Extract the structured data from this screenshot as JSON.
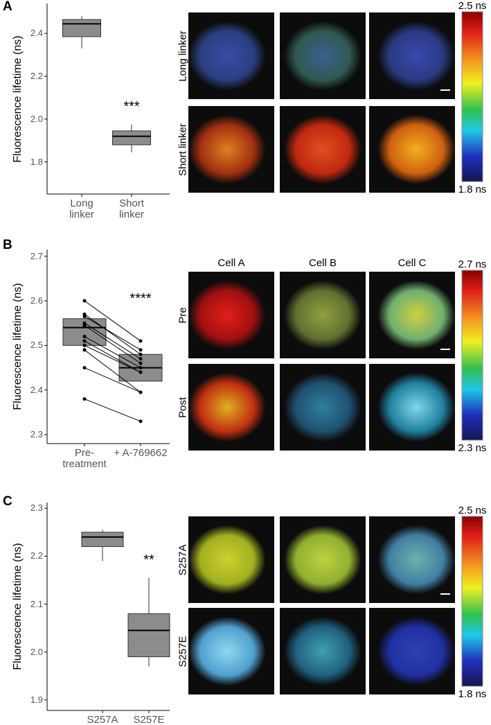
{
  "chart_data": [
    {
      "type": "box",
      "panel_label": "A",
      "y_label": "Fluorescence lifetime (ns)",
      "categories": [
        "Long linker",
        "Short linker"
      ],
      "boxes": [
        {
          "min": 2.33,
          "q1": 2.385,
          "median": 2.445,
          "q3": 2.465,
          "max": 2.48
        },
        {
          "min": 1.845,
          "q1": 1.88,
          "median": 1.92,
          "q3": 1.945,
          "max": 1.975
        }
      ],
      "annotation": "***",
      "ylim": [
        1.65,
        2.54
      ],
      "yticks": [
        1.8,
        {
          "value": 2,
          "label": "2.0"
        },
        2.2,
        2.4
      ],
      "images": {
        "row_labels": [
          "Long linker",
          "Short linker"
        ],
        "colorbar_labels": [
          "2.5 ns",
          "1.8 ns"
        ]
      }
    },
    {
      "type": "box",
      "panel_label": "B",
      "y_label": "Fluorescence lifetime (ns)",
      "categories": [
        "Pre-treatment",
        "+ A-769662"
      ],
      "boxes": [
        {
          "q1": 2.5,
          "median": 2.54,
          "q3": 2.56
        },
        {
          "q1": 2.42,
          "median": 2.45,
          "q3": 2.48
        }
      ],
      "points": [
        [
          2.6,
          2.51
        ],
        [
          2.57,
          2.48
        ],
        [
          2.565,
          2.49
        ],
        [
          2.55,
          2.47
        ],
        [
          2.545,
          2.46
        ],
        [
          2.52,
          2.45
        ],
        [
          2.51,
          2.44
        ],
        [
          2.5,
          2.44
        ],
        [
          2.49,
          2.395
        ],
        [
          2.45,
          2.395
        ],
        [
          2.38,
          2.33
        ]
      ],
      "annotation": "****",
      "ylim": [
        2.28,
        2.715
      ],
      "yticks": [
        2.3,
        2.4,
        2.5,
        2.6,
        2.7
      ],
      "images": {
        "row_labels": [
          "Pre",
          "Post"
        ],
        "col_labels": [
          "Cell A",
          "Cell B",
          "Cell C"
        ],
        "colorbar_labels": [
          "2.7 ns",
          "2.3 ns"
        ]
      }
    },
    {
      "type": "box",
      "panel_label": "C",
      "y_label": "Fluorescence lifetime (ns)",
      "categories": [
        "S257A",
        "S257E"
      ],
      "boxes": [
        {
          "min": 2.19,
          "q1": 2.22,
          "median": 2.24,
          "q3": 2.25,
          "max": 2.255
        },
        {
          "min": 1.97,
          "q1": 1.99,
          "median": 2.045,
          "q3": 2.08,
          "max": 2.155
        }
      ],
      "annotation": "**",
      "ylim": [
        1.878,
        2.312
      ],
      "yticks": [
        1.9,
        {
          "value": 2,
          "label": "2.0"
        },
        2.1,
        2.2,
        2.3
      ],
      "images": {
        "row_labels": [
          "S257A",
          "S257E"
        ],
        "colorbar_labels": [
          "2.5 ns",
          "1.8 ns"
        ]
      }
    }
  ]
}
